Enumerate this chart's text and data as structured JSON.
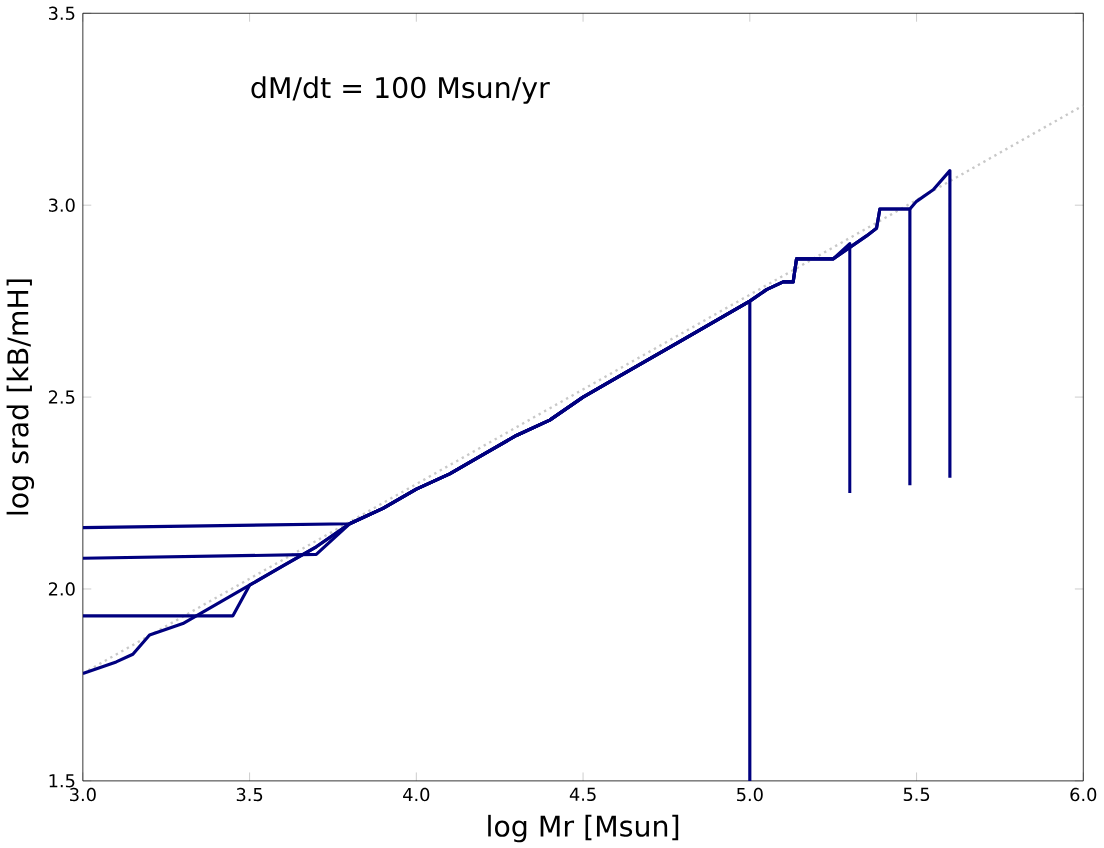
{
  "chart_data": {
    "type": "line",
    "xlabel": "log Mr [Msun]",
    "ylabel": "log srad [kB/mH]",
    "annotations": [
      "dM/dt = 100 Msun/yr"
    ],
    "xlim": [
      3.0,
      6.0
    ],
    "ylim": [
      1.5,
      3.5
    ],
    "xticks": [
      {
        "value": 3.0,
        "label": "3.0"
      },
      {
        "value": 3.5,
        "label": "3.5"
      },
      {
        "value": 4.0,
        "label": "4.0"
      },
      {
        "value": 4.5,
        "label": "4.5"
      },
      {
        "value": 5.0,
        "label": "5.0"
      },
      {
        "value": 5.5,
        "label": "5.5"
      },
      {
        "value": 6.0,
        "label": "6.0"
      }
    ],
    "yticks": [
      {
        "value": 1.5,
        "label": "1.5"
      },
      {
        "value": 2.0,
        "label": "2.0"
      },
      {
        "value": 2.5,
        "label": "2.5"
      },
      {
        "value": 3.0,
        "label": "3.0"
      },
      {
        "value": 3.5,
        "label": "3.5"
      }
    ],
    "grid": false,
    "marker": "none",
    "series": [
      {
        "color": "#c8c8c8",
        "line_style": "dotted",
        "x": [
          3.0,
          6.0
        ],
        "values": [
          1.78,
          3.26
        ]
      },
      {
        "color": "#00007f",
        "line_style": "solid",
        "x": [
          3.0,
          3.1,
          3.15,
          3.2,
          3.3,
          3.4,
          3.5,
          3.6,
          3.7,
          3.8,
          3.9,
          4.0,
          4.1,
          4.2,
          4.3,
          4.4,
          4.5,
          4.6,
          4.7,
          4.8,
          4.9,
          5.0,
          5.0
        ],
        "values": [
          1.78,
          1.81,
          1.83,
          1.88,
          1.91,
          1.96,
          2.01,
          2.06,
          2.11,
          2.17,
          2.21,
          2.26,
          2.3,
          2.35,
          2.4,
          2.44,
          2.5,
          2.55,
          2.6,
          2.65,
          2.7,
          2.75,
          1.5
        ]
      },
      {
        "color": "#00007f",
        "line_style": "solid",
        "x": [
          3.0,
          3.45,
          3.5,
          3.6,
          3.7,
          3.8,
          3.9,
          4.0,
          4.1,
          4.2,
          4.3,
          4.4,
          4.5,
          4.6,
          4.7,
          4.8,
          4.9,
          5.0,
          5.05,
          5.1,
          5.13,
          5.14,
          5.25,
          5.3,
          5.3
        ],
        "values": [
          1.93,
          1.93,
          2.01,
          2.06,
          2.11,
          2.17,
          2.21,
          2.26,
          2.3,
          2.35,
          2.4,
          2.44,
          2.5,
          2.55,
          2.6,
          2.65,
          2.7,
          2.75,
          2.78,
          2.8,
          2.8,
          2.86,
          2.86,
          2.9,
          2.25
        ]
      },
      {
        "color": "#00007f",
        "line_style": "solid",
        "x": [
          3.0,
          3.7,
          3.8,
          3.9,
          4.0,
          4.1,
          4.2,
          4.3,
          4.4,
          4.5,
          4.6,
          4.7,
          4.8,
          4.9,
          5.0,
          5.05,
          5.1,
          5.13,
          5.14,
          5.25,
          5.3,
          5.35,
          5.38,
          5.39,
          5.48,
          5.48
        ],
        "values": [
          2.08,
          2.09,
          2.17,
          2.21,
          2.26,
          2.3,
          2.35,
          2.4,
          2.44,
          2.5,
          2.55,
          2.6,
          2.65,
          2.7,
          2.75,
          2.78,
          2.8,
          2.8,
          2.86,
          2.86,
          2.89,
          2.92,
          2.94,
          2.99,
          2.99,
          2.27
        ]
      },
      {
        "color": "#00007f",
        "line_style": "solid",
        "x": [
          3.0,
          3.8,
          3.9,
          4.0,
          4.1,
          4.2,
          4.3,
          4.4,
          4.5,
          4.6,
          4.7,
          4.8,
          4.9,
          5.0,
          5.05,
          5.1,
          5.13,
          5.14,
          5.25,
          5.3,
          5.35,
          5.38,
          5.39,
          5.48,
          5.5,
          5.55,
          5.6,
          5.6
        ],
        "values": [
          2.16,
          2.17,
          2.21,
          2.26,
          2.3,
          2.35,
          2.4,
          2.44,
          2.5,
          2.55,
          2.6,
          2.65,
          2.7,
          2.75,
          2.78,
          2.8,
          2.8,
          2.86,
          2.86,
          2.89,
          2.92,
          2.94,
          2.99,
          2.99,
          3.01,
          3.04,
          3.09,
          2.29
        ]
      }
    ]
  }
}
